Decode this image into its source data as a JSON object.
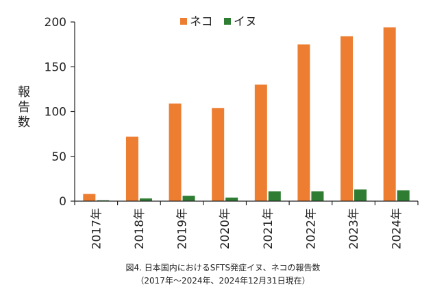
{
  "chart_data": {
    "type": "bar",
    "categories": [
      "2017年",
      "2018年",
      "2019年",
      "2020年",
      "2021年",
      "2022年",
      "2023年",
      "2024年"
    ],
    "series": [
      {
        "name": "ネコ",
        "color": "#ed7d31",
        "values": [
          8,
          72,
          109,
          104,
          130,
          175,
          184,
          194
        ]
      },
      {
        "name": "イヌ",
        "color": "#2e7d32",
        "values": [
          1,
          3,
          6,
          4,
          11,
          11,
          13,
          12
        ]
      }
    ],
    "ylabel": "報告数",
    "ylim": [
      0,
      200
    ],
    "yticks": [
      0,
      50,
      100,
      150,
      200
    ],
    "legend_position": "top-center",
    "grid": false
  },
  "caption": {
    "line1": "図4. 日本国内におけるSFTS発症イヌ、ネコの報告数",
    "line2": "（2017年〜2024年、2024年12月31日現在）"
  }
}
